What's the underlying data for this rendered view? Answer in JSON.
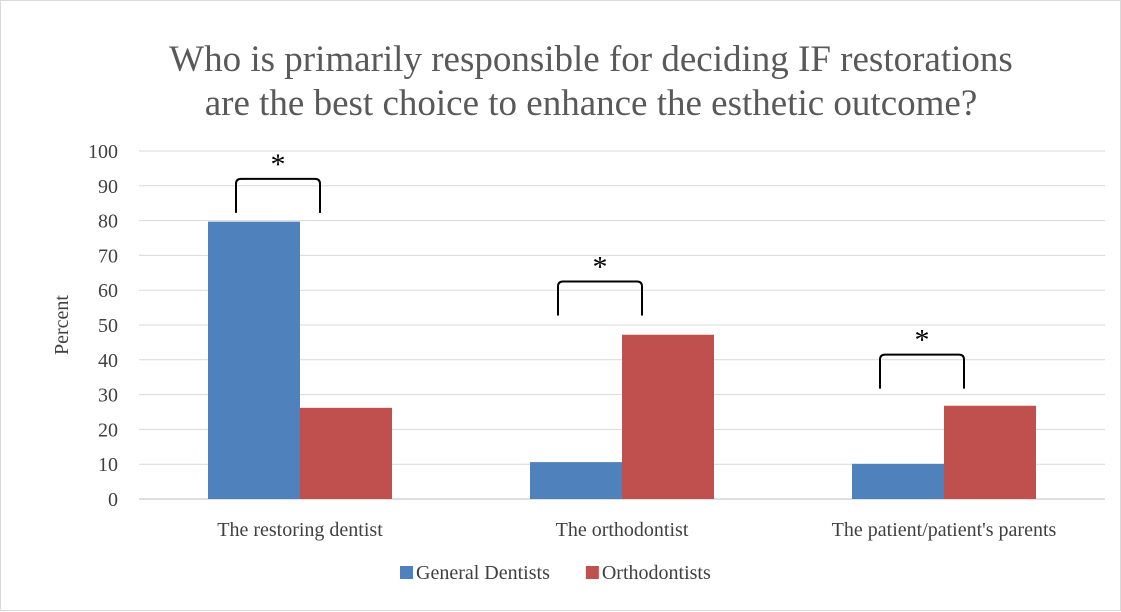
{
  "chart_data": {
    "type": "bar",
    "title_lines": [
      "Who is primarily responsible for deciding IF restorations",
      "are the best choice to enhance the esthetic outcome?"
    ],
    "xlabel": "",
    "ylabel": "Percent",
    "ylim": [
      0,
      100
    ],
    "yticks": [
      0,
      10,
      20,
      30,
      40,
      50,
      60,
      70,
      80,
      90,
      100
    ],
    "grid": true,
    "legend_position": "bottom",
    "categories": [
      "The restoring dentist",
      "The orthodontist",
      "The patient/patient's parents"
    ],
    "series": [
      {
        "name": "General Dentists",
        "color": "#4f81bd",
        "values": [
          79.7,
          10.6,
          10.1
        ]
      },
      {
        "name": "Orthodontists",
        "color": "#c0504d",
        "values": [
          26.2,
          47.2,
          26.8
        ]
      }
    ],
    "annotations": [
      {
        "category_index": 0,
        "text": "*",
        "bracket_value": 92
      },
      {
        "category_index": 1,
        "text": "*",
        "bracket_value": 62.5
      },
      {
        "category_index": 2,
        "text": "*",
        "bracket_value": 41.5
      }
    ]
  }
}
